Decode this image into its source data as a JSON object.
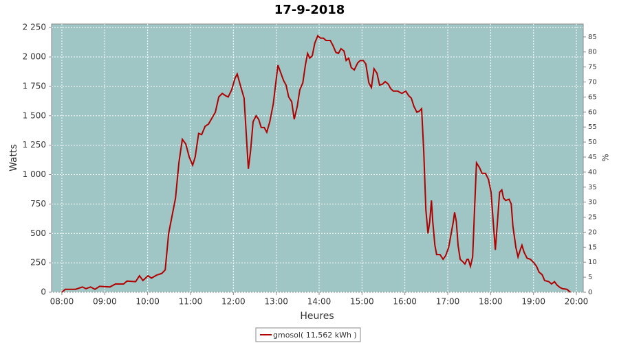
{
  "chart_data": {
    "type": "line",
    "title": "17-9-2018",
    "x_label": "Heures",
    "y_label": "Watts",
    "y2_label": "%",
    "background": "#9fc5c4",
    "grid": true,
    "x": [
      8.0,
      8.08,
      8.32,
      8.48,
      8.56,
      8.67,
      8.77,
      8.88,
      9.12,
      9.25,
      9.44,
      9.52,
      9.72,
      9.81,
      9.89,
      10.01,
      10.09,
      10.21,
      10.33,
      10.41,
      10.49,
      10.57,
      10.65,
      10.73,
      10.81,
      10.89,
      10.97,
      11.05,
      11.11,
      11.19,
      11.26,
      11.34,
      11.42,
      11.5,
      11.58,
      11.66,
      11.74,
      11.82,
      11.88,
      11.96,
      12.04,
      12.09,
      12.17,
      12.25,
      12.3,
      12.35,
      12.4,
      12.46,
      12.53,
      12.59,
      12.65,
      12.72,
      12.78,
      12.85,
      12.93,
      12.99,
      13.04,
      13.1,
      13.17,
      13.23,
      13.29,
      13.36,
      13.42,
      13.49,
      13.55,
      13.62,
      13.68,
      13.73,
      13.78,
      13.84,
      13.9,
      13.97,
      14.03,
      14.1,
      14.16,
      14.26,
      14.32,
      14.39,
      14.45,
      14.51,
      14.58,
      14.63,
      14.69,
      14.75,
      14.82,
      14.9,
      14.96,
      15.03,
      15.09,
      15.16,
      15.22,
      15.28,
      15.35,
      15.41,
      15.48,
      15.54,
      15.61,
      15.67,
      15.73,
      15.83,
      15.93,
      16.02,
      16.09,
      16.15,
      16.21,
      16.28,
      16.34,
      16.39,
      16.44,
      16.49,
      16.54,
      16.58,
      16.62,
      16.65,
      16.7,
      16.74,
      16.82,
      16.89,
      16.95,
      17.02,
      17.08,
      17.13,
      17.16,
      17.2,
      17.24,
      17.29,
      17.35,
      17.4,
      17.45,
      17.48,
      17.53,
      17.58,
      17.63,
      17.67,
      17.74,
      17.8,
      17.88,
      17.95,
      18.01,
      18.06,
      18.11,
      18.16,
      18.21,
      18.26,
      18.3,
      18.35,
      18.43,
      18.48,
      18.52,
      18.59,
      18.64,
      18.69,
      18.73,
      18.78,
      18.85,
      18.93,
      19.01,
      19.07,
      19.13,
      19.2,
      19.26,
      19.36,
      19.42,
      19.49,
      19.55,
      19.62,
      19.68,
      19.78,
      19.86
    ],
    "series": [
      {
        "name": "gmosol( 11,562 kWh )",
        "color": "#b00000",
        "values": [
          0,
          25,
          25,
          45,
          30,
          45,
          25,
          50,
          45,
          70,
          70,
          95,
          90,
          140,
          100,
          140,
          120,
          145,
          160,
          190,
          500,
          650,
          800,
          1100,
          1300,
          1260,
          1150,
          1080,
          1150,
          1350,
          1340,
          1410,
          1430,
          1480,
          1530,
          1660,
          1690,
          1670,
          1660,
          1720,
          1820,
          1855,
          1750,
          1650,
          1350,
          1050,
          1200,
          1450,
          1500,
          1470,
          1400,
          1400,
          1360,
          1450,
          1600,
          1780,
          1930,
          1870,
          1800,
          1760,
          1660,
          1620,
          1470,
          1580,
          1720,
          1780,
          1930,
          2030,
          1990,
          2010,
          2120,
          2180,
          2160,
          2160,
          2140,
          2140,
          2100,
          2040,
          2030,
          2070,
          2050,
          1970,
          1990,
          1910,
          1890,
          1950,
          1970,
          1970,
          1940,
          1780,
          1740,
          1900,
          1860,
          1760,
          1770,
          1790,
          1770,
          1730,
          1710,
          1710,
          1690,
          1710,
          1670,
          1650,
          1580,
          1530,
          1540,
          1560,
          1200,
          700,
          500,
          600,
          780,
          600,
          400,
          320,
          320,
          280,
          310,
          380,
          500,
          600,
          680,
          600,
          400,
          280,
          260,
          240,
          280,
          280,
          220,
          300,
          750,
          1100,
          1060,
          1010,
          1010,
          960,
          850,
          600,
          360,
          600,
          850,
          870,
          800,
          780,
          790,
          750,
          560,
          380,
          300,
          360,
          400,
          340,
          290,
          280,
          250,
          220,
          170,
          150,
          100,
          90,
          70,
          90,
          60,
          40,
          30,
          25,
          0
        ]
      }
    ],
    "xlim": [
      7.76,
      20.16
    ],
    "xticks": [
      {
        "value": 8,
        "label": "08:00"
      },
      {
        "value": 9,
        "label": "09:00"
      },
      {
        "value": 10,
        "label": "10:00"
      },
      {
        "value": 11,
        "label": "11:00"
      },
      {
        "value": 12,
        "label": "12:00"
      },
      {
        "value": 13,
        "label": "13:00"
      },
      {
        "value": 14,
        "label": "14:00"
      },
      {
        "value": 15,
        "label": "15:00"
      },
      {
        "value": 16,
        "label": "16:00"
      },
      {
        "value": 17,
        "label": "17:00"
      },
      {
        "value": 18,
        "label": "18:00"
      },
      {
        "value": 19,
        "label": "19:00"
      },
      {
        "value": 20,
        "label": "20:00"
      }
    ],
    "ylim": [
      0,
      2280
    ],
    "yticks": [
      0,
      250,
      500,
      750,
      {
        "value": 1000,
        "label": "1 000"
      },
      {
        "value": 1250,
        "label": "1 250"
      },
      {
        "value": 1500,
        "label": "1 500"
      },
      {
        "value": 1750,
        "label": "1 750"
      },
      {
        "value": 2000,
        "label": "2 000"
      },
      {
        "value": 2250,
        "label": "2 250"
      }
    ],
    "y2lim": [
      0,
      89.3
    ],
    "y2ticks": [
      0,
      5,
      10,
      15,
      20,
      25,
      30,
      35,
      40,
      45,
      50,
      55,
      60,
      65,
      70,
      75,
      80,
      85
    ]
  }
}
